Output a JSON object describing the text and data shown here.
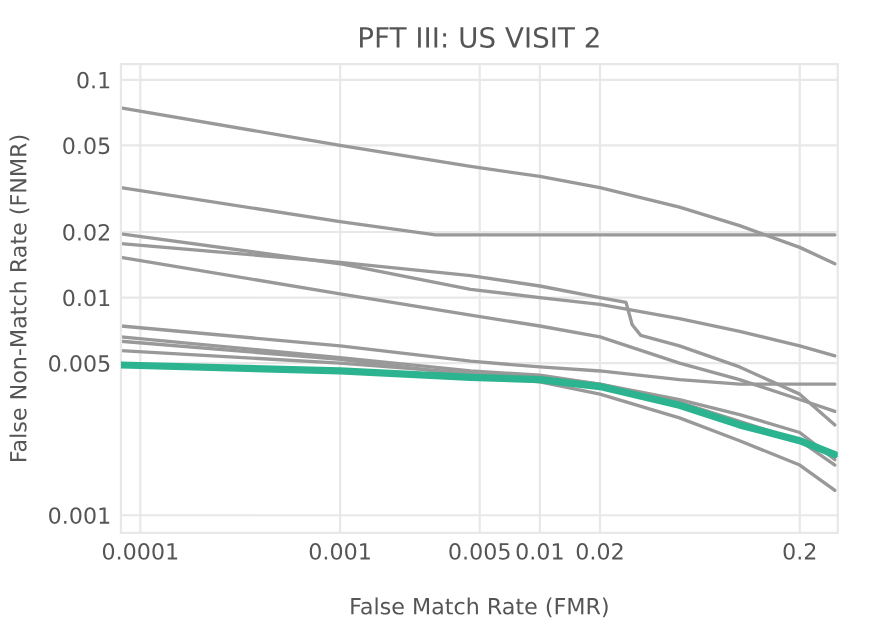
{
  "chart_data": {
    "type": "line",
    "title": "PFT III: US VISIT 2",
    "xlabel": "False Match Rate (FMR)",
    "ylabel": "False Non-Match Rate (FNMR)",
    "log": "xy",
    "grid": true,
    "marker": "none",
    "line_style": "solid",
    "x": [
      8e-05,
      0.001,
      0.0045,
      0.01,
      0.02,
      0.05,
      0.1,
      0.2,
      0.3
    ],
    "series": [
      {
        "color": "#999999",
        "values": [
          0.0744,
          0.05,
          0.04,
          0.036,
          0.032,
          0.026,
          0.0214,
          0.017,
          0.0143
        ]
      },
      {
        "color": "#999999",
        "x": [
          8e-05,
          0.001,
          0.003,
          0.3
        ],
        "values": [
          0.032,
          0.0223,
          0.0194,
          0.0194
        ]
      },
      {
        "color": "#999999",
        "values": [
          0.0196,
          0.0143,
          0.0109,
          0.01,
          0.0093,
          0.008,
          0.007,
          0.006,
          0.0054
        ]
      },
      {
        "color": "#999999",
        "x": [
          8e-05,
          0.001,
          0.0045,
          0.01,
          0.02,
          0.027,
          0.029,
          0.032,
          0.05,
          0.1,
          0.2,
          0.3
        ],
        "values": [
          0.0177,
          0.0145,
          0.0126,
          0.0113,
          0.01,
          0.0095,
          0.0075,
          0.0067,
          0.006,
          0.0048,
          0.0036,
          0.0026
        ]
      },
      {
        "color": "#999999",
        "values": [
          0.0153,
          0.0104,
          0.0083,
          0.0074,
          0.0066,
          0.005,
          0.0042,
          0.0034,
          0.003
        ]
      },
      {
        "color": "#999999",
        "values": [
          0.0074,
          0.006,
          0.0051,
          0.0048,
          0.0046,
          0.0042,
          0.004,
          0.004,
          0.004
        ]
      },
      {
        "color": "#999999",
        "values": [
          0.0066,
          0.0053,
          0.0046,
          0.0044,
          0.004,
          0.0033,
          0.0027,
          0.0022,
          0.0017
        ]
      },
      {
        "color": "#999999",
        "values": [
          0.0057,
          0.005,
          0.0045,
          0.0043,
          0.004,
          0.0034,
          0.0029,
          0.0024,
          0.0018
        ]
      },
      {
        "color": "#999999",
        "values": [
          0.0063,
          0.0052,
          0.0044,
          0.0041,
          0.0036,
          0.0028,
          0.0022,
          0.0017,
          0.0013
        ]
      },
      {
        "color": "#2cb38f",
        "values": [
          0.0049,
          0.0046,
          0.0043,
          0.0042,
          0.0039,
          0.0032,
          0.0026,
          0.0022,
          0.0019
        ]
      }
    ],
    "xlim": [
      8e-05,
      0.31
    ],
    "xticks": [
      0.0001,
      0.001,
      0.005,
      0.01,
      0.02,
      0.2
    ],
    "ylim": [
      0.00083,
      0.118
    ],
    "yticks": [
      0.001,
      0.005,
      0.01,
      0.02,
      0.05,
      0.1
    ]
  }
}
